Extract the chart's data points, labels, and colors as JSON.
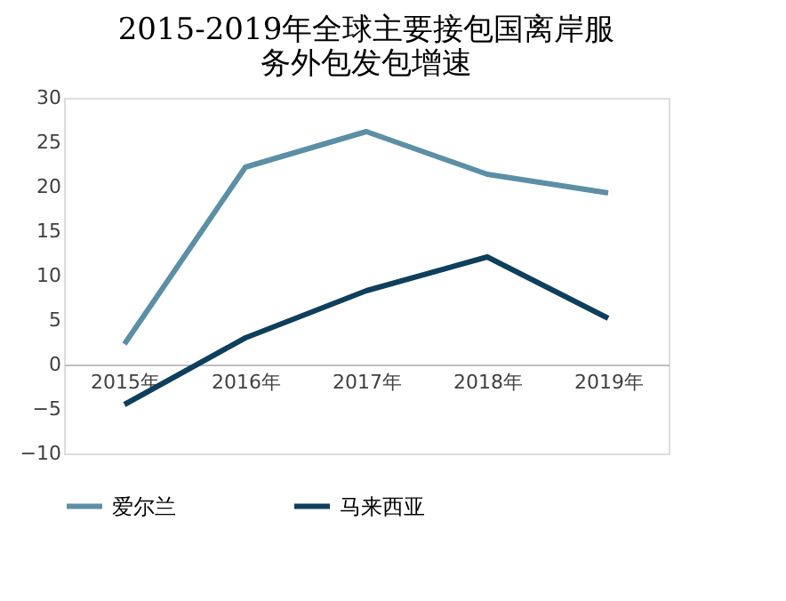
{
  "chart_data": {
    "type": "line",
    "title": "2015-2019年全球主要接包国离岸服务外包发包增速",
    "categories": [
      "2015年",
      "2016年",
      "2017年",
      "2018年",
      "2019年"
    ],
    "series": [
      {
        "name": "爱尔兰",
        "color": "#5b8fa6",
        "values": [
          2.3,
          22.2,
          26.2,
          21.4,
          19.3
        ]
      },
      {
        "name": "马来西亚",
        "color": "#0e3f5c",
        "values": [
          -4.5,
          3.0,
          8.3,
          12.1,
          5.2
        ]
      }
    ],
    "ylim": [
      -10,
      30
    ],
    "yticks": [
      -10,
      -5,
      0,
      5,
      10,
      15,
      20,
      25,
      30
    ],
    "grid": false,
    "legend": "bottom",
    "marker": "none",
    "line_style": "solid"
  }
}
